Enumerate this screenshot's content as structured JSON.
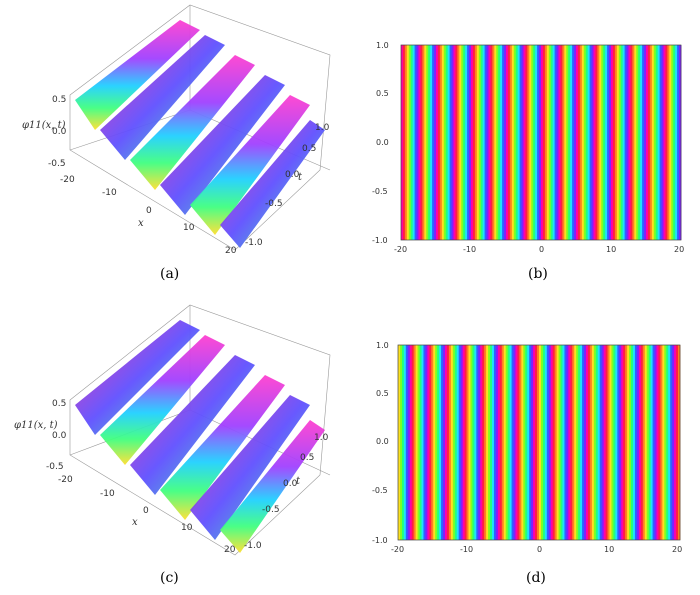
{
  "figure": {
    "panels": [
      {
        "caption": "(a)",
        "kind": "surface3d",
        "z_label": "φ11(x, t)",
        "x_label": "x",
        "t_label": "t",
        "z_ticks": [
          "0.5",
          "0.0",
          "-0.5"
        ],
        "x_ticks": [
          "-20",
          "-10",
          "0",
          "10",
          "20"
        ],
        "t_ticks": [
          "1.0",
          "0.5",
          "0.0",
          "-0.5",
          "-1.0"
        ],
        "ridges": 6
      },
      {
        "caption": "(b)",
        "kind": "density",
        "x_ticks": [
          "-20",
          "-10",
          "0",
          "10",
          "20"
        ],
        "y_ticks": [
          "1.0",
          "0.5",
          "0.0",
          "-0.5",
          "-1.0"
        ],
        "stripes": 24
      },
      {
        "caption": "(c)",
        "kind": "surface3d",
        "z_label": "φ11(x, t)",
        "x_label": "x",
        "t_label": "t",
        "z_ticks": [
          "0.5",
          "0.0",
          "-0.5"
        ],
        "x_ticks": [
          "-20",
          "-10",
          "0",
          "10",
          "20"
        ],
        "t_ticks": [
          "1.0",
          "0.5",
          "0.0",
          "-0.5",
          "-1.0"
        ],
        "ridges": 6
      },
      {
        "caption": "(d)",
        "kind": "density",
        "x_ticks": [
          "-20",
          "-10",
          "0",
          "10",
          "20"
        ],
        "y_ticks": [
          "1.0",
          "0.5",
          "0.0",
          "-0.5",
          "-1.0"
        ],
        "stripes": 24
      }
    ],
    "stripe_colors": [
      "#ff00aa",
      "#ff2040",
      "#ff8020",
      "#ffe020",
      "#80ff20",
      "#20ff80",
      "#20e0ff",
      "#3060ff",
      "#8020ff"
    ]
  }
}
